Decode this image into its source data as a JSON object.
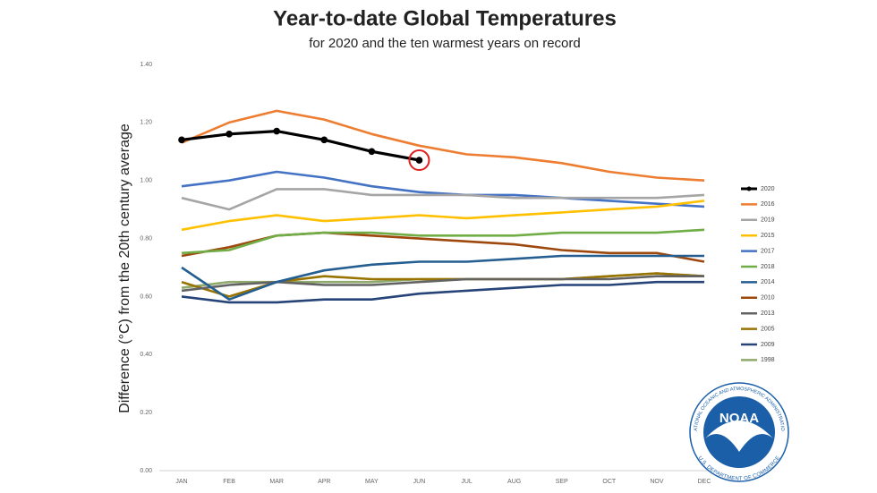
{
  "chart_data": {
    "type": "line",
    "title": "Year-to-date Global Temperatures",
    "subtitle": "for 2020 and the ten warmest years on record",
    "y_label": "Difference (°C) from the 20th century average",
    "categories": [
      "JAN",
      "FEB",
      "MAR",
      "APR",
      "MAY",
      "JUN",
      "JUL",
      "AUG",
      "SEP",
      "OCT",
      "NOV",
      "DEC"
    ],
    "ylim": [
      0,
      1.4
    ],
    "yticks": [
      {
        "value": 0,
        "label": "0.00"
      },
      {
        "value": 0.2,
        "label": "0.20"
      },
      {
        "value": 0.4,
        "label": "0.40"
      },
      {
        "value": 0.6,
        "label": "0.60"
      },
      {
        "value": 0.8,
        "label": "0.80"
      },
      {
        "value": 1.0,
        "label": "1.00"
      },
      {
        "value": 1.2,
        "label": "1.20"
      },
      {
        "value": 1.4,
        "label": "1.40"
      }
    ],
    "grid": false,
    "legend": "right",
    "series": [
      {
        "name": "2020",
        "color": "#000000",
        "markers": true,
        "values": [
          1.14,
          1.16,
          1.17,
          1.14,
          1.1,
          1.07,
          null,
          null,
          null,
          null,
          null,
          null
        ]
      },
      {
        "name": "2016",
        "color": "#ed7d31",
        "values": [
          1.13,
          1.2,
          1.24,
          1.21,
          1.16,
          1.12,
          1.09,
          1.08,
          1.06,
          1.03,
          1.01,
          1.0
        ]
      },
      {
        "name": "2019",
        "color": "#a5a5a5",
        "values": [
          0.94,
          0.9,
          0.97,
          0.97,
          0.95,
          0.95,
          0.95,
          0.94,
          0.94,
          0.94,
          0.94,
          0.95
        ]
      },
      {
        "name": "2015",
        "color": "#ffc000",
        "values": [
          0.83,
          0.86,
          0.88,
          0.86,
          0.87,
          0.88,
          0.87,
          0.88,
          0.89,
          0.9,
          0.91,
          0.93
        ]
      },
      {
        "name": "2017",
        "color": "#4472c4",
        "values": [
          0.98,
          1.0,
          1.03,
          1.01,
          0.98,
          0.96,
          0.95,
          0.95,
          0.94,
          0.93,
          0.92,
          0.91
        ]
      },
      {
        "name": "2018",
        "color": "#70ad47",
        "values": [
          0.75,
          0.76,
          0.81,
          0.82,
          0.82,
          0.81,
          0.81,
          0.81,
          0.82,
          0.82,
          0.82,
          0.83
        ]
      },
      {
        "name": "2014",
        "color": "#255e91",
        "values": [
          0.7,
          0.59,
          0.65,
          0.69,
          0.71,
          0.72,
          0.72,
          0.73,
          0.74,
          0.74,
          0.74,
          0.74
        ]
      },
      {
        "name": "2010",
        "color": "#9e480e",
        "values": [
          0.74,
          0.77,
          0.81,
          0.82,
          0.81,
          0.8,
          0.79,
          0.78,
          0.76,
          0.75,
          0.75,
          0.72
        ]
      },
      {
        "name": "2013",
        "color": "#636363",
        "values": [
          0.62,
          0.64,
          0.65,
          0.64,
          0.64,
          0.65,
          0.66,
          0.66,
          0.66,
          0.66,
          0.67,
          0.67
        ]
      },
      {
        "name": "2005",
        "color": "#997300",
        "values": [
          0.65,
          0.6,
          0.65,
          0.67,
          0.66,
          0.66,
          0.66,
          0.66,
          0.66,
          0.67,
          0.68,
          0.67
        ]
      },
      {
        "name": "2009",
        "color": "#264478",
        "values": [
          0.6,
          0.58,
          0.58,
          0.59,
          0.59,
          0.61,
          0.62,
          0.63,
          0.64,
          0.64,
          0.65,
          0.65
        ]
      },
      {
        "name": "1998",
        "color": "#8faa6c",
        "values": [
          0.63,
          0.65,
          0.65,
          0.65,
          0.65,
          0.66,
          0.66,
          0.66,
          0.66,
          0.67,
          0.68,
          0.67
        ]
      }
    ]
  },
  "logo": {
    "text": "NOAA",
    "ring_top": "NATIONAL OCEANIC AND ATMOSPHERIC ADMINISTRATION",
    "ring_bottom": "U.S. DEPARTMENT OF COMMERCE"
  }
}
